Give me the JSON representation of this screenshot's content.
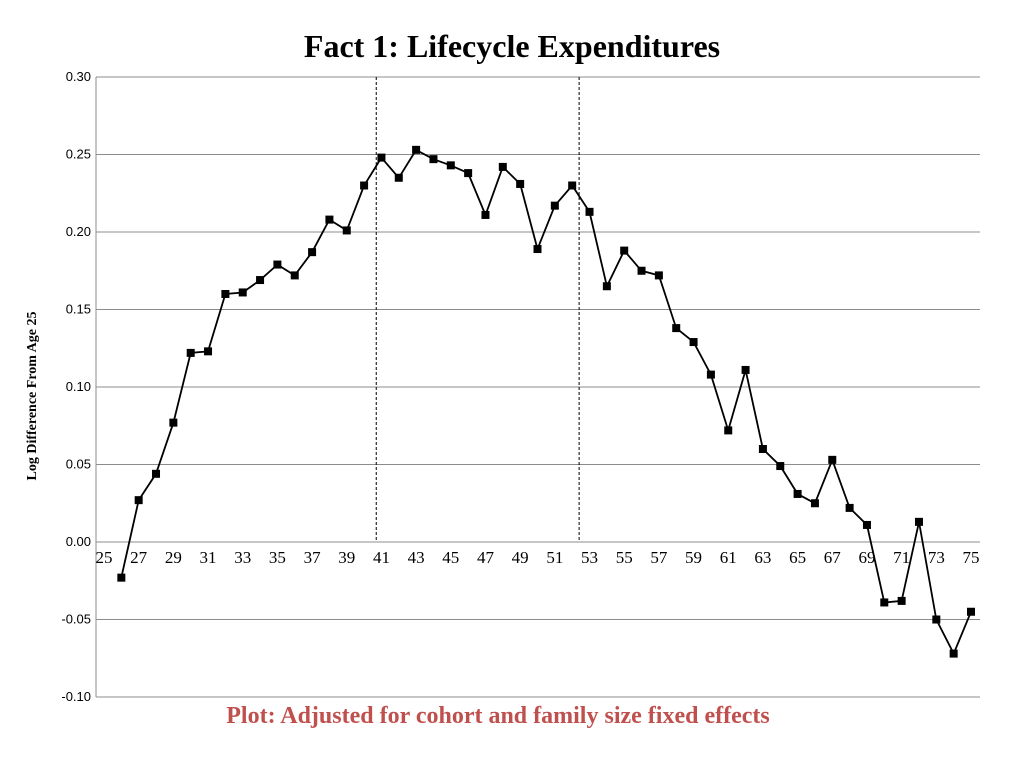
{
  "chart_data": {
    "type": "line",
    "title": "Fact 1: Lifecycle Expenditures",
    "ylabel": "Log Difference From Age 25",
    "xlabel": "",
    "footnote": "Plot:  Adjusted for cohort and family size fixed effects",
    "xlim": [
      25,
      75
    ],
    "ylim": [
      -0.1,
      0.3
    ],
    "y_ticks": [
      "-0.10",
      "-0.05",
      "0.00",
      "0.05",
      "0.10",
      "0.15",
      "0.20",
      "0.25",
      "0.30"
    ],
    "x_ticks": [
      25,
      27,
      29,
      31,
      33,
      35,
      37,
      39,
      41,
      43,
      45,
      47,
      49,
      51,
      53,
      55,
      57,
      59,
      61,
      63,
      65,
      67,
      69,
      71,
      73,
      75
    ],
    "grid": true,
    "marker": "square",
    "line_color": "#000000",
    "vertical_reference_lines": [
      40.7,
      52.4
    ],
    "series": [
      {
        "x": [
          26,
          27,
          28,
          29,
          30,
          31,
          32,
          33,
          34,
          35,
          36,
          37,
          38,
          39,
          40,
          41,
          42,
          43,
          44,
          45,
          46,
          47,
          48,
          49,
          50,
          51,
          52,
          53,
          54,
          55,
          56,
          57,
          58,
          59,
          60,
          61,
          62,
          63,
          64,
          65,
          66,
          67,
          68,
          69,
          70,
          71,
          72,
          73,
          74,
          75
        ],
        "values": [
          -0.023,
          0.027,
          0.044,
          0.077,
          0.122,
          0.123,
          0.16,
          0.161,
          0.169,
          0.179,
          0.172,
          0.187,
          0.208,
          0.201,
          0.23,
          0.248,
          0.235,
          0.253,
          0.247,
          0.243,
          0.238,
          0.211,
          0.242,
          0.231,
          0.189,
          0.217,
          0.23,
          0.213,
          0.165,
          0.188,
          0.175,
          0.172,
          0.138,
          0.129,
          0.108,
          0.072,
          0.111,
          0.06,
          0.049,
          0.031,
          0.025,
          0.053,
          0.022,
          0.011,
          -0.039,
          -0.038,
          0.013,
          -0.05,
          -0.072,
          -0.045
        ]
      }
    ]
  }
}
